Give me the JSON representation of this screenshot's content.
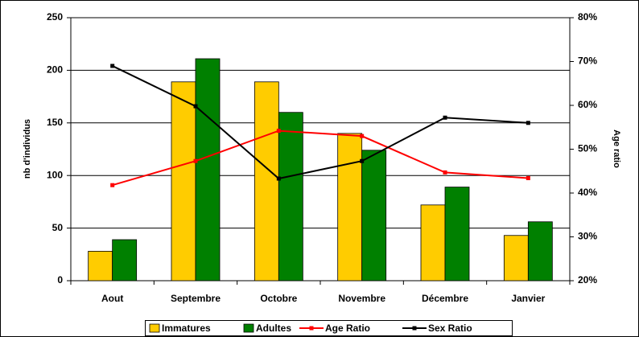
{
  "chart_data": {
    "type": "bar",
    "categories": [
      "Aout",
      "Septembre",
      "Octobre",
      "Novembre",
      "Décembre",
      "Janvier"
    ],
    "ylabel": "nb d'individus",
    "y2label": "Age ratio",
    "ylim": [
      0,
      250
    ],
    "yticks": [
      0,
      50,
      100,
      150,
      200,
      250
    ],
    "y2lim": [
      20,
      80
    ],
    "y2ticks": [
      {
        "value": 20,
        "label": "20%"
      },
      {
        "value": 30,
        "label": "30%"
      },
      {
        "value": 40,
        "label": "40%"
      },
      {
        "value": 50,
        "label": "50%"
      },
      {
        "value": 60,
        "label": "60%"
      },
      {
        "value": 70,
        "label": "70%"
      },
      {
        "value": 80,
        "label": "80%"
      }
    ],
    "grid": true,
    "legend": "bottom",
    "series": [
      {
        "name": "Immatures",
        "type": "bar",
        "color": "#FFCC00",
        "values": [
          28,
          189,
          189,
          140,
          72,
          43
        ]
      },
      {
        "name": "Adultes",
        "type": "bar",
        "color": "#008000",
        "values": [
          39,
          211,
          160,
          124,
          89,
          56
        ]
      },
      {
        "name": "Age Ratio",
        "type": "line",
        "axis": "y2",
        "color": "#FF0000",
        "values": [
          41.8,
          47.3,
          54.2,
          53.0,
          44.7,
          43.4
        ]
      },
      {
        "name": "Sex Ratio",
        "type": "line",
        "axis": "y2",
        "color": "#000000",
        "values": [
          69.0,
          59.8,
          43.3,
          47.3,
          57.2,
          56.0
        ]
      }
    ]
  }
}
